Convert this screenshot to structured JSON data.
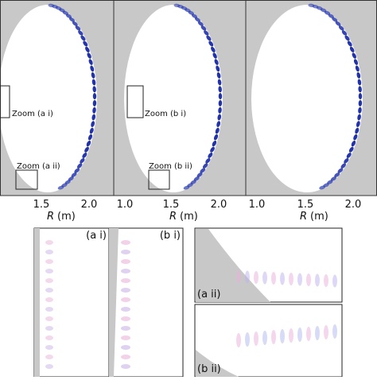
{
  "panels": [
    {
      "ticks": [
        "1.5",
        "2.0"
      ],
      "xlabel": {
        "symbol": "R",
        "unit": "(m)"
      },
      "zooms": [
        "Zoom (a i)",
        "Zoom (a ii)"
      ]
    },
    {
      "ticks": [
        "1.0",
        "1.5",
        "2.0"
      ],
      "xlabel": {
        "symbol": "R",
        "unit": "(m)"
      },
      "zooms": [
        "Zoom (b i)",
        "Zoom (b ii)"
      ]
    },
    {
      "ticks": [
        "1.0",
        "1.5",
        "2.0"
      ],
      "xlabel": {
        "symbol": "R",
        "unit": "(m)"
      }
    }
  ],
  "insets": [
    "(a i)",
    "(b i)",
    "(a ii)",
    "(b ii)"
  ]
}
